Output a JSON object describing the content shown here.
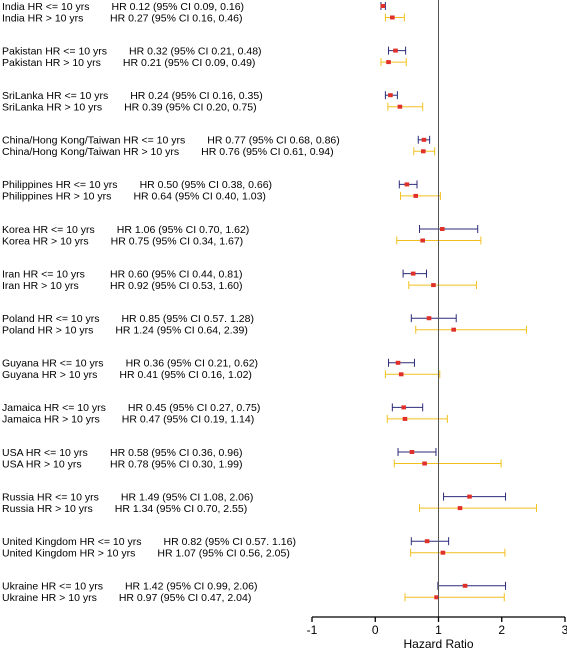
{
  "chart_data": {
    "type": "scatter",
    "subtype": "forest-plot",
    "xlabel": "Hazard Ratio",
    "xlim": [
      -1,
      3
    ],
    "xticks": [
      "-1",
      "0",
      "1",
      "2",
      "3"
    ],
    "reference_line_x": 1,
    "grid": false,
    "colors": {
      "le10": "#2b2b7a",
      "gt10": "#f2c01e",
      "marker": "#e0302a",
      "axis": "#000000",
      "reference": "#555555"
    },
    "groups": [
      {
        "rows": [
          {
            "label": "India HR <= 10 yrs",
            "stat": "HR 0.12 (95% CI 0.09, 0.16)",
            "hr": 0.12,
            "lo": 0.09,
            "hi": 0.16,
            "group": "le10"
          },
          {
            "label": "India HR > 10 yrs",
            "stat": "HR 0.27 (95% CI 0.16, 0.46)",
            "hr": 0.27,
            "lo": 0.16,
            "hi": 0.46,
            "group": "gt10"
          }
        ]
      },
      {
        "rows": [
          {
            "label": "Pakistan HR <= 10 yrs",
            "stat": "HR 0.32 (95% CI 0.21, 0.48)",
            "hr": 0.32,
            "lo": 0.21,
            "hi": 0.48,
            "group": "le10"
          },
          {
            "label": "Pakistan HR > 10 yrs",
            "stat": "HR 0.21 (95% CI 0.09, 0.49)",
            "hr": 0.21,
            "lo": 0.09,
            "hi": 0.49,
            "group": "gt10"
          }
        ]
      },
      {
        "rows": [
          {
            "label": "SriLanka HR <= 10 yrs",
            "stat": "HR 0.24 (95% CI 0.16, 0.35)",
            "hr": 0.24,
            "lo": 0.16,
            "hi": 0.35,
            "group": "le10"
          },
          {
            "label": "SriLanka HR > 10 yrs",
            "stat": "HR 0.39 (95% CI 0.20, 0.75)",
            "hr": 0.39,
            "lo": 0.2,
            "hi": 0.75,
            "group": "gt10"
          }
        ]
      },
      {
        "rows": [
          {
            "label": "China/Hong Kong/Taiwan HR <= 10 yrs",
            "stat": "HR 0.77 (95% CI 0.68, 0.86)",
            "hr": 0.77,
            "lo": 0.68,
            "hi": 0.86,
            "group": "le10"
          },
          {
            "label": "China/Hong Kong/Taiwan HR > 10 yrs",
            "stat": "HR 0.76 (95% CI 0.61, 0.94)",
            "hr": 0.76,
            "lo": 0.61,
            "hi": 0.94,
            "group": "gt10"
          }
        ]
      },
      {
        "rows": [
          {
            "label": "Philippines HR <= 10 yrs",
            "stat": "HR 0.50 (95% CI 0.38, 0.66)",
            "hr": 0.5,
            "lo": 0.38,
            "hi": 0.66,
            "group": "le10"
          },
          {
            "label": "Philippines HR > 10 yrs",
            "stat": "HR 0.64 (95% CI 0.40, 1.03)",
            "hr": 0.64,
            "lo": 0.4,
            "hi": 1.03,
            "group": "gt10"
          }
        ]
      },
      {
        "rows": [
          {
            "label": "Korea HR <= 10 yrs",
            "stat": "HR 1.06 (95% CI 0.70, 1.62)",
            "hr": 1.06,
            "lo": 0.7,
            "hi": 1.62,
            "group": "le10"
          },
          {
            "label": "Korea HR > 10 yrs",
            "stat": "HR 0.75 (95% CI 0.34, 1.67)",
            "hr": 0.75,
            "lo": 0.34,
            "hi": 1.67,
            "group": "gt10"
          }
        ]
      },
      {
        "rows": [
          {
            "label": "Iran HR <= 10 yrs",
            "stat": "HR 0.60 (95% CI 0.44, 0.81)",
            "hr": 0.6,
            "lo": 0.44,
            "hi": 0.81,
            "group": "le10"
          },
          {
            "label": "Iran HR > 10 yrs",
            "stat": "HR 0.92 (95% CI 0.53, 1.60)",
            "hr": 0.92,
            "lo": 0.53,
            "hi": 1.6,
            "group": "gt10"
          }
        ]
      },
      {
        "rows": [
          {
            "label": "Poland HR <= 10 yrs",
            "stat": "HR 0.85 (95% CI 0.57. 1.28)",
            "hr": 0.85,
            "lo": 0.57,
            "hi": 1.28,
            "group": "le10"
          },
          {
            "label": "Poland HR > 10 yrs",
            "stat": "HR 1.24 (95% CI 0.64, 2.39)",
            "hr": 1.24,
            "lo": 0.64,
            "hi": 2.39,
            "group": "gt10"
          }
        ]
      },
      {
        "rows": [
          {
            "label": "Guyana HR <= 10 yrs",
            "stat": "HR 0.36 (95% CI 0.21, 0.62)",
            "hr": 0.36,
            "lo": 0.21,
            "hi": 0.62,
            "group": "le10"
          },
          {
            "label": "Guyana HR > 10 yrs",
            "stat": "HR 0.41 (95% CI 0.16, 1.02)",
            "hr": 0.41,
            "lo": 0.16,
            "hi": 1.02,
            "group": "gt10"
          }
        ]
      },
      {
        "rows": [
          {
            "label": "Jamaica HR <= 10 yrs",
            "stat": "HR 0.45 (95% CI 0.27, 0.75)",
            "hr": 0.45,
            "lo": 0.27,
            "hi": 0.75,
            "group": "le10"
          },
          {
            "label": "Jamaica HR > 10 yrs",
            "stat": "HR 0.47 (95% CI 0.19, 1.14)",
            "hr": 0.47,
            "lo": 0.19,
            "hi": 1.14,
            "group": "gt10"
          }
        ]
      },
      {
        "rows": [
          {
            "label": "USA HR <= 10 yrs",
            "stat": "HR 0.58 (95% CI 0.36, 0.96)",
            "hr": 0.58,
            "lo": 0.36,
            "hi": 0.96,
            "group": "le10"
          },
          {
            "label": "USA HR > 10 yrs",
            "stat": "HR 0.78 (95% CI 0.30, 1.99)",
            "hr": 0.78,
            "lo": 0.3,
            "hi": 1.99,
            "group": "gt10"
          }
        ]
      },
      {
        "rows": [
          {
            "label": "Russia HR <= 10 yrs",
            "stat": "HR 1.49 (95% CI 1.08, 2.06)",
            "hr": 1.49,
            "lo": 1.08,
            "hi": 2.06,
            "group": "le10"
          },
          {
            "label": "Russia HR > 10 yrs",
            "stat": "HR 1.34 (95% CI 0.70, 2.55)",
            "hr": 1.34,
            "lo": 0.7,
            "hi": 2.55,
            "group": "gt10"
          }
        ]
      },
      {
        "rows": [
          {
            "label": "United Kingdom HR <= 10 yrs",
            "stat": "HR 0.82 (95% CI 0.57. 1.16)",
            "hr": 0.82,
            "lo": 0.57,
            "hi": 1.16,
            "group": "le10"
          },
          {
            "label": "United Kingdom HR > 10 yrs",
            "stat": "HR 1.07 (95% CI 0.56, 2.05)",
            "hr": 1.07,
            "lo": 0.56,
            "hi": 2.05,
            "group": "gt10"
          }
        ]
      },
      {
        "rows": [
          {
            "label": "Ukraine HR <= 10 yrs",
            "stat": "HR 1.42 (95% CI 0.99, 2.06)",
            "hr": 1.42,
            "lo": 0.99,
            "hi": 2.06,
            "group": "le10"
          },
          {
            "label": "Ukraine HR > 10 yrs",
            "stat": "HR 0.97 (95% CI 0.47, 2.04)",
            "hr": 0.97,
            "lo": 0.47,
            "hi": 2.04,
            "group": "gt10"
          }
        ]
      }
    ]
  }
}
